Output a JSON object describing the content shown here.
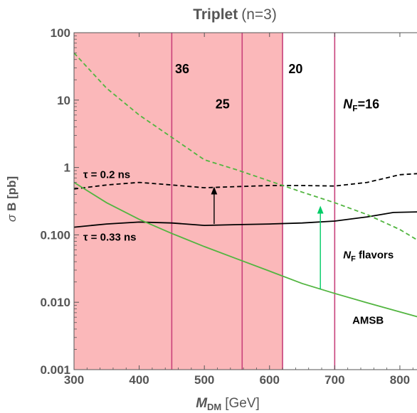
{
  "chart_data": {
    "type": "line",
    "title": "Triplet (n=3)",
    "title_main": "Triplet",
    "title_paren": "(n=3)",
    "xlabel_main": "M",
    "xlabel_sub": "DM",
    "xlabel_unit": "[GeV]",
    "ylabel_sym": "σ",
    "ylabel_rest": "B [pb]",
    "xlim": [
      300,
      835
    ],
    "ylim": [
      0.001,
      100
    ],
    "yscale": "log",
    "x_ticks": [
      {
        "v": 300,
        "t": "300"
      },
      {
        "v": 400,
        "t": "400"
      },
      {
        "v": 500,
        "t": "500"
      },
      {
        "v": 600,
        "t": "600"
      },
      {
        "v": 700,
        "t": "700"
      },
      {
        "v": 800,
        "t": "800"
      }
    ],
    "y_ticks": [
      {
        "v": 0.001,
        "t": "0.001"
      },
      {
        "v": 0.01,
        "t": "0.010"
      },
      {
        "v": 0.1,
        "t": "0.100"
      },
      {
        "v": 1,
        "t": "1"
      },
      {
        "v": 10,
        "t": "10"
      },
      {
        "v": 100,
        "t": "100"
      }
    ],
    "excluded_region": {
      "x": [
        300,
        620
      ],
      "color": "#fbb8ba"
    },
    "vertical_lines": [
      {
        "x": 450,
        "label": "36",
        "label_x": 455,
        "label_y": 25
      },
      {
        "x": 558,
        "label": "25",
        "label_x": 517,
        "label_y": 7.5
      },
      {
        "x": 620,
        "label": "20",
        "label_x": 629,
        "label_y": 25
      },
      {
        "x": 700,
        "label_main": "N",
        "label_sub": "F",
        "label_rest": "=16",
        "label_x": 713,
        "label_y": 7.5
      }
    ],
    "vline_color": "#c8407a",
    "series": [
      {
        "label": "τ = 0.2 ns",
        "label_x": 314,
        "label_y": 0.7,
        "color": "#000000",
        "dash": true,
        "x": [
          300,
          350,
          400,
          450,
          500,
          550,
          600,
          650,
          700,
          750,
          800,
          835
        ],
        "y": [
          0.48,
          0.55,
          0.6,
          0.55,
          0.5,
          0.52,
          0.54,
          0.54,
          0.53,
          0.6,
          0.78,
          0.82
        ]
      },
      {
        "label": "τ = 0.33 ns",
        "label_x": 314,
        "label_y": 0.082,
        "color": "#000000",
        "dash": false,
        "x": [
          300,
          350,
          400,
          450,
          500,
          550,
          600,
          650,
          700,
          750,
          790,
          835
        ],
        "y": [
          0.13,
          0.145,
          0.155,
          0.15,
          0.138,
          0.142,
          0.145,
          0.15,
          0.16,
          0.185,
          0.215,
          0.22
        ]
      },
      {
        "label_main": "N",
        "label_sub": "F",
        "label_rest": " flavors",
        "label_x": 713,
        "label_y": 0.045,
        "color": "#52b540",
        "dash": true,
        "x": [
          300,
          350,
          400,
          450,
          500,
          550,
          600,
          650,
          700,
          750,
          800,
          835
        ],
        "y": [
          50,
          15,
          6,
          2.8,
          1.3,
          0.92,
          0.63,
          0.43,
          0.3,
          0.2,
          0.12,
          0.075
        ]
      },
      {
        "label": "AMSB",
        "label_x": 727,
        "label_y": 0.0048,
        "color": "#52b540",
        "dash": false,
        "x": [
          300,
          350,
          400,
          450,
          500,
          550,
          600,
          650,
          700,
          750,
          800,
          835
        ],
        "y": [
          0.6,
          0.3,
          0.17,
          0.105,
          0.067,
          0.044,
          0.029,
          0.019,
          0.0135,
          0.0098,
          0.0072,
          0.0058
        ]
      }
    ],
    "arrows": [
      {
        "x": 515,
        "y_from": 0.145,
        "y_to": 0.5,
        "color": "#000000"
      },
      {
        "x": 678,
        "y_from": 0.0155,
        "y_to": 0.26,
        "color": "#00cc66"
      }
    ]
  }
}
